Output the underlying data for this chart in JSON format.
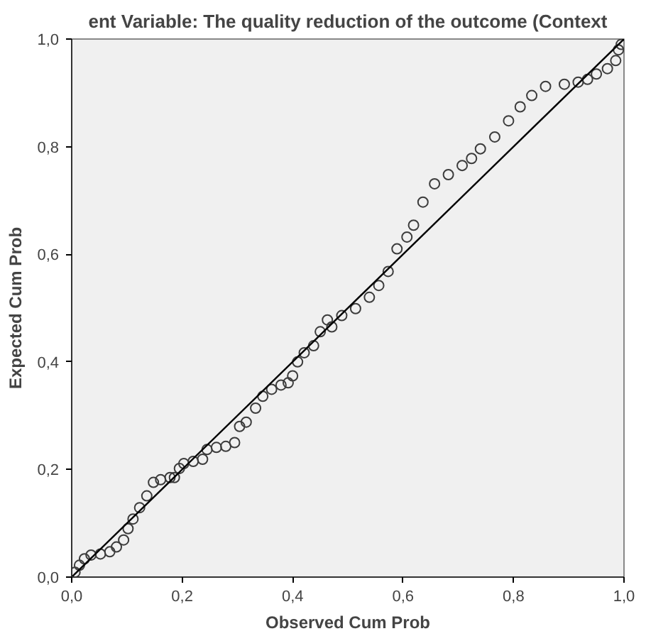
{
  "chart_data": {
    "type": "scatter",
    "title": "ent Variable: The quality reduction of the outcome (Context",
    "xlabel": "Observed Cum Prob",
    "ylabel": "Expected Cum Prob",
    "xlim": [
      0,
      1
    ],
    "ylim": [
      0,
      1
    ],
    "xticks": [
      {
        "value": 0,
        "label": "0,0"
      },
      {
        "value": 0.2,
        "label": "0,2"
      },
      {
        "value": 0.4,
        "label": "0,4"
      },
      {
        "value": 0.6,
        "label": "0,6"
      },
      {
        "value": 0.8,
        "label": "0,8"
      },
      {
        "value": 1,
        "label": "1,0"
      }
    ],
    "yticks": [
      {
        "value": 0,
        "label": "0,0"
      },
      {
        "value": 0.2,
        "label": "0,2"
      },
      {
        "value": 0.4,
        "label": "0,4"
      },
      {
        "value": 0.6,
        "label": "0,6"
      },
      {
        "value": 0.8,
        "label": "0,8"
      },
      {
        "value": 1,
        "label": "1,0"
      }
    ],
    "grid": false,
    "marker": "circle",
    "series": [
      {
        "color": "#3c3c3c",
        "x": [
          0.006,
          0.014,
          0.023,
          0.035,
          0.052,
          0.069,
          0.081,
          0.094,
          0.102,
          0.111,
          0.123,
          0.136,
          0.148,
          0.161,
          0.178,
          0.186,
          0.195,
          0.203,
          0.22,
          0.237,
          0.245,
          0.262,
          0.279,
          0.295,
          0.304,
          0.316,
          0.333,
          0.346,
          0.362,
          0.379,
          0.392,
          0.4,
          0.409,
          0.421,
          0.438,
          0.45,
          0.463,
          0.471,
          0.489,
          0.514,
          0.539,
          0.556,
          0.573,
          0.589,
          0.607,
          0.619,
          0.636,
          0.657,
          0.682,
          0.707,
          0.724,
          0.74,
          0.766,
          0.791,
          0.812,
          0.833,
          0.858,
          0.892,
          0.917,
          0.934,
          0.95,
          0.97,
          0.985,
          0.99,
          0.995
        ],
        "values": [
          0.009,
          0.022,
          0.034,
          0.041,
          0.043,
          0.047,
          0.056,
          0.069,
          0.09,
          0.108,
          0.129,
          0.151,
          0.176,
          0.181,
          0.185,
          0.185,
          0.202,
          0.211,
          0.215,
          0.219,
          0.237,
          0.241,
          0.243,
          0.25,
          0.28,
          0.288,
          0.314,
          0.336,
          0.349,
          0.357,
          0.361,
          0.374,
          0.4,
          0.417,
          0.43,
          0.456,
          0.478,
          0.465,
          0.486,
          0.499,
          0.52,
          0.542,
          0.568,
          0.61,
          0.632,
          0.654,
          0.697,
          0.731,
          0.748,
          0.765,
          0.778,
          0.796,
          0.818,
          0.848,
          0.874,
          0.895,
          0.912,
          0.916,
          0.92,
          0.925,
          0.935,
          0.945,
          0.96,
          0.98,
          0.99
        ]
      },
      {
        "type": "line",
        "marker": "none",
        "color": "#000000",
        "x": [
          0,
          1
        ],
        "values": [
          0,
          1
        ]
      }
    ]
  }
}
